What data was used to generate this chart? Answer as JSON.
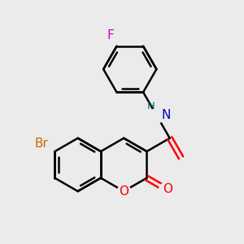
{
  "bg_color": "#ebebeb",
  "bond_color": "#000000",
  "atom_colors": {
    "Br": "#cc6600",
    "O": "#ff0000",
    "N": "#0000cc",
    "H": "#008080",
    "F": "#cc00cc"
  },
  "bond_lw": 1.8,
  "font_size": 11
}
